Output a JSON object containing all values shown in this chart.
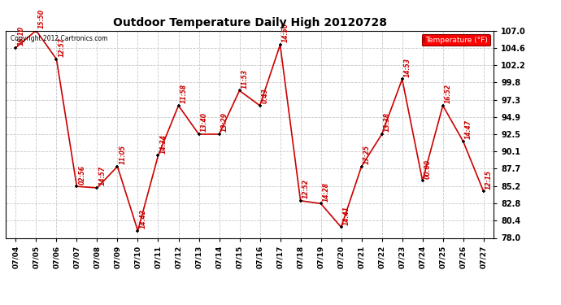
{
  "title": "Outdoor Temperature Daily High 20120728",
  "background_color": "#ffffff",
  "plot_bg_color": "#ffffff",
  "copyright_text": "Copyright 2012 Cartronics.com",
  "legend_label": "Temperature (°F)",
  "dates": [
    "07/04",
    "07/05",
    "07/06",
    "07/07",
    "07/08",
    "07/09",
    "07/10",
    "07/11",
    "07/12",
    "07/13",
    "07/14",
    "07/15",
    "07/16",
    "07/17",
    "07/18",
    "07/19",
    "07/20",
    "07/21",
    "07/22",
    "07/23",
    "07/24",
    "07/25",
    "07/26",
    "07/27"
  ],
  "values": [
    104.6,
    107.0,
    103.0,
    85.2,
    85.0,
    88.0,
    79.0,
    89.5,
    96.5,
    92.5,
    92.5,
    98.6,
    96.5,
    105.0,
    83.2,
    82.8,
    79.5,
    88.0,
    92.5,
    100.2,
    86.0,
    96.5,
    91.5,
    84.5
  ],
  "annotations": [
    "16:10",
    "15:50",
    "12:57",
    "02:56",
    "14:57",
    "11:05",
    "14:42",
    "14:34",
    "11:58",
    "13:40",
    "13:29",
    "11:53",
    "0:43",
    "14:50",
    "12:52",
    "14:28",
    "14:41",
    "17:25",
    "13:38",
    "14:53",
    "00:00",
    "16:52",
    "14:47",
    "12:15"
  ],
  "line_color": "#cc0000",
  "marker_color": "#000000",
  "annotation_color": "#cc0000",
  "grid_color": "#c8c8c8",
  "ylim_min": 78.0,
  "ylim_max": 107.0,
  "yticks": [
    78.0,
    80.4,
    82.8,
    85.2,
    87.7,
    90.1,
    92.5,
    94.9,
    97.3,
    99.8,
    102.2,
    104.6,
    107.0
  ]
}
